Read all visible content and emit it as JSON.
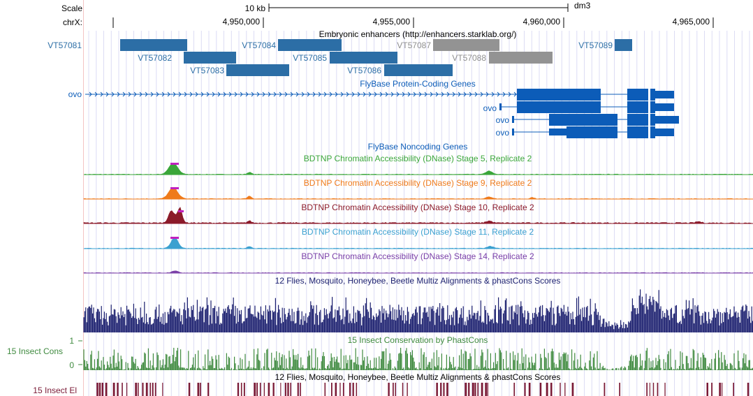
{
  "header": {
    "scale_label": "Scale",
    "chrom_label": "chrX:",
    "scalebar_text": "10 kb",
    "assembly": "dm3",
    "coords": [
      "4,950,000",
      "4,955,000",
      "4,960,000",
      "4,965,000"
    ]
  },
  "enhancers": {
    "title": "Embryonic enhancers (http://enhancers.starklab.org/)",
    "items": [
      {
        "label": "VT57081",
        "color": "#2c6ea6"
      },
      {
        "label": "VT57082",
        "color": "#2c6ea6"
      },
      {
        "label": "VT57083",
        "color": "#2c6ea6"
      },
      {
        "label": "VT57084",
        "color": "#2c6ea6"
      },
      {
        "label": "VT57085",
        "color": "#2c6ea6"
      },
      {
        "label": "VT57086",
        "color": "#2c6ea6"
      },
      {
        "label": "VT57087",
        "color": "#8f8f8f"
      },
      {
        "label": "VT57088",
        "color": "#8f8f8f"
      },
      {
        "label": "VT57089",
        "color": "#2c6ea6"
      }
    ]
  },
  "genes": {
    "title": "FlyBase Protein-Coding Genes",
    "transcripts": [
      "ovo",
      "ovo",
      "ovo",
      "ovo"
    ],
    "color": "#0c5cb8"
  },
  "noncoding": {
    "title": "FlyBase Noncoding Genes"
  },
  "dnase_tracks": [
    {
      "title": "BDTNP Chromatin Accessibility (DNase) Stage 5, Replicate 2",
      "color": "#3aa63a"
    },
    {
      "title": "BDTNP Chromatin Accessibility (DNase) Stage 9, Replicate 2",
      "color": "#ef7a1a"
    },
    {
      "title": "BDTNP Chromatin Accessibility (DNase) Stage 10, Replicate 2",
      "color": "#8b1a2a"
    },
    {
      "title": "BDTNP Chromatin Accessibility (DNase) Stage 11, Replicate 2",
      "color": "#3aa0d0"
    },
    {
      "title": "BDTNP Chromatin Accessibility (DNase) Stage 14, Replicate 2",
      "color": "#7a3fa8"
    }
  ],
  "multiz": {
    "title": "12 Flies, Mosquito, Honeybee, Beetle Multiz Alignments & phastCons Scores",
    "color": "#1a1e6e"
  },
  "conservation": {
    "title": "15 Insect Conservation by PhastCons",
    "side_label": "15 Insect Cons",
    "y_max": "1",
    "y_min": "0",
    "color": "#3f8a3f"
  },
  "elements": {
    "title": "12 Flies, Mosquito, Honeybee, Beetle Multiz Alignments & phastCons Scores",
    "side_label": "15 Insect El",
    "color": "#7a1a36"
  }
}
